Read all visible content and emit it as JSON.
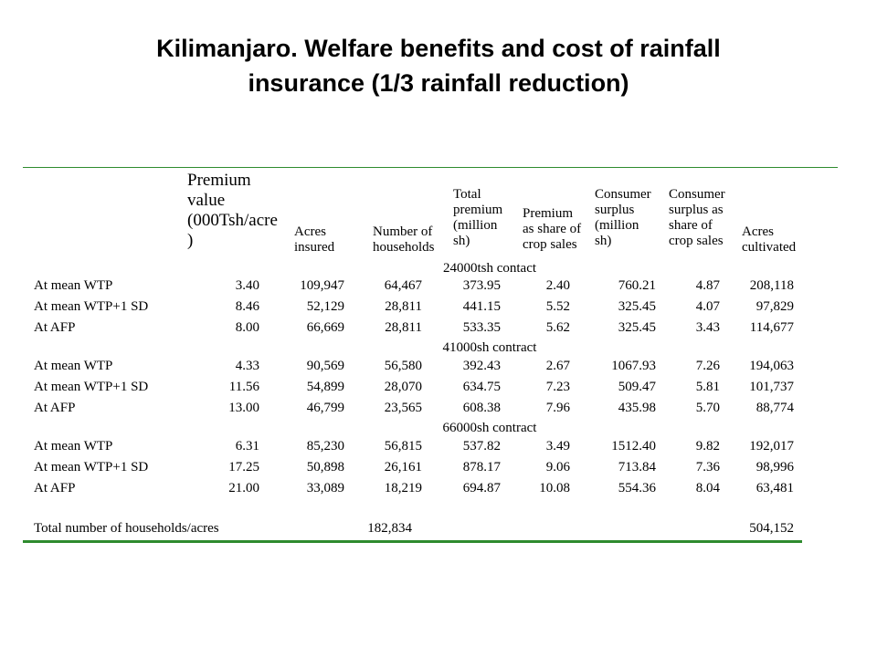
{
  "title_line1": "Kilimanjaro. Welfare benefits and cost of rainfall",
  "title_line2": "insurance (1/3 rainfall reduction)",
  "table": {
    "headers": {
      "premium_value": [
        "Premium",
        "value",
        "(000Tsh/acre",
        ")"
      ],
      "acres_insured": [
        "Acres",
        "insured"
      ],
      "number_of_households": [
        "Number of",
        "households"
      ],
      "total_premium": [
        "Total",
        "premium",
        "(million",
        "sh)"
      ],
      "premium_share": [
        "Premium",
        "as share of",
        "crop sales"
      ],
      "consumer_surplus": [
        "Consumer",
        "surplus",
        "(million",
        "sh)"
      ],
      "cs_share": [
        "Consumer",
        "surplus as",
        "share of",
        "crop sales"
      ],
      "acres_cultivated": [
        "Acres",
        "cultivated"
      ]
    },
    "sections": [
      {
        "label": "24000tsh contact",
        "rows": [
          {
            "label": "At mean WTP",
            "values": [
              "3.40",
              "109,947",
              "64,467",
              "373.95",
              "2.40",
              "760.21",
              "4.87",
              "208,118"
            ]
          },
          {
            "label": "At mean WTP+1 SD",
            "values": [
              "8.46",
              "52,129",
              "28,811",
              "441.15",
              "5.52",
              "325.45",
              "4.07",
              "97,829"
            ]
          },
          {
            "label": "At AFP",
            "values": [
              "8.00",
              "66,669",
              "28,811",
              "533.35",
              "5.62",
              "325.45",
              "3.43",
              "114,677"
            ]
          }
        ]
      },
      {
        "label": "41000sh contract",
        "rows": [
          {
            "label": "At mean WTP",
            "values": [
              "4.33",
              "90,569",
              "56,580",
              "392.43",
              "2.67",
              "1067.93",
              "7.26",
              "194,063"
            ]
          },
          {
            "label": "At mean WTP+1 SD",
            "values": [
              "11.56",
              "54,899",
              "28,070",
              "634.75",
              "7.23",
              "509.47",
              "5.81",
              "101,737"
            ]
          },
          {
            "label": "At AFP",
            "values": [
              "13.00",
              "46,799",
              "23,565",
              "608.38",
              "7.96",
              "435.98",
              "5.70",
              "88,774"
            ]
          }
        ]
      },
      {
        "label": "66000sh contract",
        "rows": [
          {
            "label": "At mean WTP",
            "values": [
              "6.31",
              "85,230",
              "56,815",
              "537.82",
              "3.49",
              "1512.40",
              "9.82",
              "192,017"
            ]
          },
          {
            "label": "At mean WTP+1 SD",
            "values": [
              "17.25",
              "50,898",
              "26,161",
              "878.17",
              "9.06",
              "713.84",
              "7.36",
              "98,996"
            ]
          },
          {
            "label": "At AFP",
            "values": [
              "21.00",
              "33,089",
              "18,219",
              "694.87",
              "10.08",
              "554.36",
              "8.04",
              "63,481"
            ]
          }
        ]
      }
    ],
    "total_row": {
      "label": "Total number of households/acres",
      "households": "182,834",
      "acres_cultivated": "504,152"
    }
  }
}
